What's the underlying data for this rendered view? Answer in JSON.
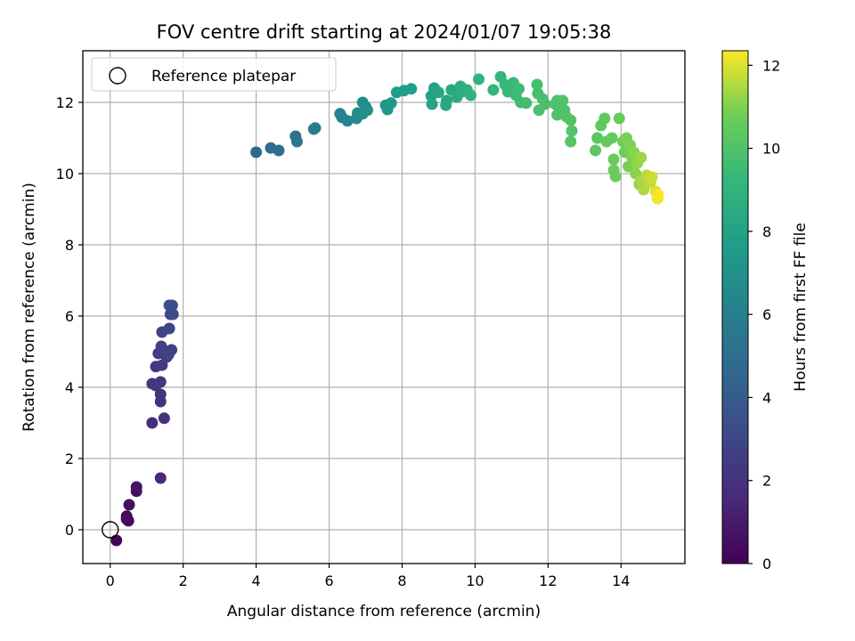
{
  "chart_data": {
    "type": "scatter",
    "title": "FOV centre drift starting at 2024/01/07 19:05:38",
    "xlabel": "Angular distance from reference (arcmin)",
    "ylabel": "Rotation from reference (arcmin)",
    "xlim": [
      -0.75,
      15.75
    ],
    "ylim": [
      -0.95,
      13.45
    ],
    "xticks": [
      0,
      2,
      4,
      6,
      8,
      10,
      12,
      14
    ],
    "xticklabels": [
      "0",
      "2",
      "4",
      "6",
      "8",
      "10",
      "12",
      "14"
    ],
    "yticks": [
      0,
      2,
      4,
      6,
      8,
      10,
      12
    ],
    "yticklabels": [
      "0",
      "2",
      "4",
      "6",
      "8",
      "10",
      "12"
    ],
    "grid": true,
    "legend": {
      "placement": "top-left",
      "entries": [
        "Reference platepar"
      ]
    },
    "reference_point": {
      "x": 0,
      "y": 0,
      "marker": "open-circle"
    },
    "colorbar": {
      "label": "Hours from first FF file",
      "colormap": "viridis",
      "range": [
        0,
        12.35
      ],
      "ticks": [
        0,
        2,
        4,
        6,
        8,
        10,
        12
      ],
      "ticklabels": [
        "0",
        "2",
        "4",
        "6",
        "8",
        "10",
        "12"
      ]
    },
    "points": [
      {
        "x": 0.17,
        "y": -0.3,
        "t": 0.15
      },
      {
        "x": 0.45,
        "y": 0.3,
        "t": 0.3
      },
      {
        "x": 0.5,
        "y": 0.25,
        "t": 0.35
      },
      {
        "x": 0.45,
        "y": 0.38,
        "t": 0.4
      },
      {
        "x": 0.52,
        "y": 0.7,
        "t": 0.5
      },
      {
        "x": 0.72,
        "y": 1.08,
        "t": 0.6
      },
      {
        "x": 0.72,
        "y": 1.2,
        "t": 0.65
      },
      {
        "x": 1.38,
        "y": 1.45,
        "t": 1.6
      },
      {
        "x": 1.15,
        "y": 3.0,
        "t": 1.8
      },
      {
        "x": 1.48,
        "y": 3.13,
        "t": 1.9
      },
      {
        "x": 1.38,
        "y": 3.6,
        "t": 2.0
      },
      {
        "x": 1.38,
        "y": 3.8,
        "t": 2.1
      },
      {
        "x": 1.15,
        "y": 4.1,
        "t": 2.2
      },
      {
        "x": 1.25,
        "y": 4.05,
        "t": 2.2
      },
      {
        "x": 1.38,
        "y": 4.15,
        "t": 2.3
      },
      {
        "x": 1.25,
        "y": 4.58,
        "t": 2.4
      },
      {
        "x": 1.42,
        "y": 4.62,
        "t": 2.4
      },
      {
        "x": 1.55,
        "y": 4.85,
        "t": 2.5
      },
      {
        "x": 1.32,
        "y": 4.95,
        "t": 2.5
      },
      {
        "x": 1.5,
        "y": 5.0,
        "t": 2.6
      },
      {
        "x": 1.68,
        "y": 5.05,
        "t": 2.6
      },
      {
        "x": 1.6,
        "y": 4.92,
        "t": 2.7
      },
      {
        "x": 1.4,
        "y": 5.15,
        "t": 2.7
      },
      {
        "x": 1.42,
        "y": 5.55,
        "t": 2.8
      },
      {
        "x": 1.62,
        "y": 5.65,
        "t": 2.9
      },
      {
        "x": 1.65,
        "y": 6.05,
        "t": 3.0
      },
      {
        "x": 1.72,
        "y": 6.05,
        "t": 3.1
      },
      {
        "x": 1.7,
        "y": 6.3,
        "t": 3.2
      },
      {
        "x": 1.62,
        "y": 6.3,
        "t": 3.3
      },
      {
        "x": 4.0,
        "y": 10.6,
        "t": 4.8
      },
      {
        "x": 4.4,
        "y": 10.72,
        "t": 4.9
      },
      {
        "x": 4.62,
        "y": 10.65,
        "t": 5.0
      },
      {
        "x": 5.08,
        "y": 11.05,
        "t": 5.3
      },
      {
        "x": 5.12,
        "y": 10.9,
        "t": 5.4
      },
      {
        "x": 5.58,
        "y": 11.25,
        "t": 5.7
      },
      {
        "x": 5.62,
        "y": 11.28,
        "t": 5.8
      },
      {
        "x": 6.3,
        "y": 11.68,
        "t": 6.1
      },
      {
        "x": 6.35,
        "y": 11.58,
        "t": 6.2
      },
      {
        "x": 6.5,
        "y": 11.48,
        "t": 6.3
      },
      {
        "x": 6.75,
        "y": 11.55,
        "t": 6.5
      },
      {
        "x": 6.78,
        "y": 11.7,
        "t": 6.6
      },
      {
        "x": 6.92,
        "y": 12.0,
        "t": 6.7
      },
      {
        "x": 6.92,
        "y": 11.68,
        "t": 6.8
      },
      {
        "x": 7.0,
        "y": 11.88,
        "t": 6.9
      },
      {
        "x": 7.05,
        "y": 11.78,
        "t": 7.0
      },
      {
        "x": 7.55,
        "y": 11.92,
        "t": 7.2
      },
      {
        "x": 7.6,
        "y": 11.8,
        "t": 7.3
      },
      {
        "x": 7.7,
        "y": 11.98,
        "t": 7.4
      },
      {
        "x": 7.85,
        "y": 12.28,
        "t": 7.6
      },
      {
        "x": 8.05,
        "y": 12.33,
        "t": 7.7
      },
      {
        "x": 8.25,
        "y": 12.38,
        "t": 7.8
      },
      {
        "x": 8.8,
        "y": 12.18,
        "t": 8.0
      },
      {
        "x": 8.88,
        "y": 12.4,
        "t": 8.0
      },
      {
        "x": 8.82,
        "y": 11.95,
        "t": 8.1
      },
      {
        "x": 9.0,
        "y": 12.28,
        "t": 8.2
      },
      {
        "x": 9.2,
        "y": 11.92,
        "t": 8.3
      },
      {
        "x": 9.22,
        "y": 12.05,
        "t": 8.3
      },
      {
        "x": 9.35,
        "y": 12.35,
        "t": 8.4
      },
      {
        "x": 9.5,
        "y": 12.15,
        "t": 8.5
      },
      {
        "x": 9.6,
        "y": 12.45,
        "t": 8.6
      },
      {
        "x": 9.65,
        "y": 12.3,
        "t": 8.7
      },
      {
        "x": 9.78,
        "y": 12.35,
        "t": 8.8
      },
      {
        "x": 9.88,
        "y": 12.2,
        "t": 8.9
      },
      {
        "x": 10.1,
        "y": 12.65,
        "t": 9.0
      },
      {
        "x": 10.5,
        "y": 12.35,
        "t": 9.1
      },
      {
        "x": 10.7,
        "y": 12.72,
        "t": 9.2
      },
      {
        "x": 10.82,
        "y": 12.5,
        "t": 9.3
      },
      {
        "x": 10.9,
        "y": 12.3,
        "t": 9.3
      },
      {
        "x": 11.05,
        "y": 12.55,
        "t": 9.4
      },
      {
        "x": 11.12,
        "y": 12.2,
        "t": 9.5
      },
      {
        "x": 11.2,
        "y": 12.38,
        "t": 9.5
      },
      {
        "x": 11.25,
        "y": 12.0,
        "t": 9.6
      },
      {
        "x": 11.4,
        "y": 11.98,
        "t": 9.6
      },
      {
        "x": 11.7,
        "y": 12.5,
        "t": 9.7
      },
      {
        "x": 11.72,
        "y": 12.25,
        "t": 9.7
      },
      {
        "x": 11.85,
        "y": 12.1,
        "t": 9.8
      },
      {
        "x": 11.92,
        "y": 11.95,
        "t": 9.8
      },
      {
        "x": 11.75,
        "y": 11.78,
        "t": 9.9
      },
      {
        "x": 12.2,
        "y": 11.95,
        "t": 9.9
      },
      {
        "x": 12.25,
        "y": 12.05,
        "t": 9.9
      },
      {
        "x": 12.4,
        "y": 12.05,
        "t": 10.0
      },
      {
        "x": 12.25,
        "y": 11.65,
        "t": 10.0
      },
      {
        "x": 12.45,
        "y": 11.78,
        "t": 10.0
      },
      {
        "x": 12.5,
        "y": 11.6,
        "t": 10.1
      },
      {
        "x": 12.62,
        "y": 11.5,
        "t": 10.1
      },
      {
        "x": 12.65,
        "y": 11.2,
        "t": 10.1
      },
      {
        "x": 12.62,
        "y": 10.9,
        "t": 10.2
      },
      {
        "x": 13.3,
        "y": 10.65,
        "t": 10.3
      },
      {
        "x": 13.35,
        "y": 11.0,
        "t": 10.3
      },
      {
        "x": 13.45,
        "y": 11.35,
        "t": 10.4
      },
      {
        "x": 13.55,
        "y": 11.55,
        "t": 10.4
      },
      {
        "x": 13.6,
        "y": 10.9,
        "t": 10.5
      },
      {
        "x": 13.75,
        "y": 11.0,
        "t": 10.5
      },
      {
        "x": 13.8,
        "y": 10.4,
        "t": 10.6
      },
      {
        "x": 13.95,
        "y": 11.55,
        "t": 10.6
      },
      {
        "x": 13.8,
        "y": 10.1,
        "t": 10.7
      },
      {
        "x": 13.85,
        "y": 9.92,
        "t": 10.7
      },
      {
        "x": 14.05,
        "y": 10.9,
        "t": 10.8
      },
      {
        "x": 14.1,
        "y": 10.6,
        "t": 10.8
      },
      {
        "x": 14.15,
        "y": 11.0,
        "t": 10.9
      },
      {
        "x": 14.2,
        "y": 10.2,
        "t": 10.9
      },
      {
        "x": 14.25,
        "y": 10.8,
        "t": 11.0
      },
      {
        "x": 14.3,
        "y": 10.45,
        "t": 11.0
      },
      {
        "x": 14.35,
        "y": 10.6,
        "t": 11.1
      },
      {
        "x": 14.4,
        "y": 10.0,
        "t": 11.1
      },
      {
        "x": 14.45,
        "y": 10.3,
        "t": 11.2
      },
      {
        "x": 14.5,
        "y": 9.7,
        "t": 11.2
      },
      {
        "x": 14.55,
        "y": 10.45,
        "t": 11.3
      },
      {
        "x": 14.55,
        "y": 9.8,
        "t": 11.4
      },
      {
        "x": 14.62,
        "y": 9.55,
        "t": 11.5
      },
      {
        "x": 14.7,
        "y": 9.95,
        "t": 11.6
      },
      {
        "x": 14.8,
        "y": 9.75,
        "t": 11.7
      },
      {
        "x": 14.85,
        "y": 9.9,
        "t": 11.8
      },
      {
        "x": 14.95,
        "y": 9.5,
        "t": 12.0
      },
      {
        "x": 15.0,
        "y": 9.3,
        "t": 12.2
      },
      {
        "x": 15.02,
        "y": 9.4,
        "t": 12.3
      }
    ]
  }
}
